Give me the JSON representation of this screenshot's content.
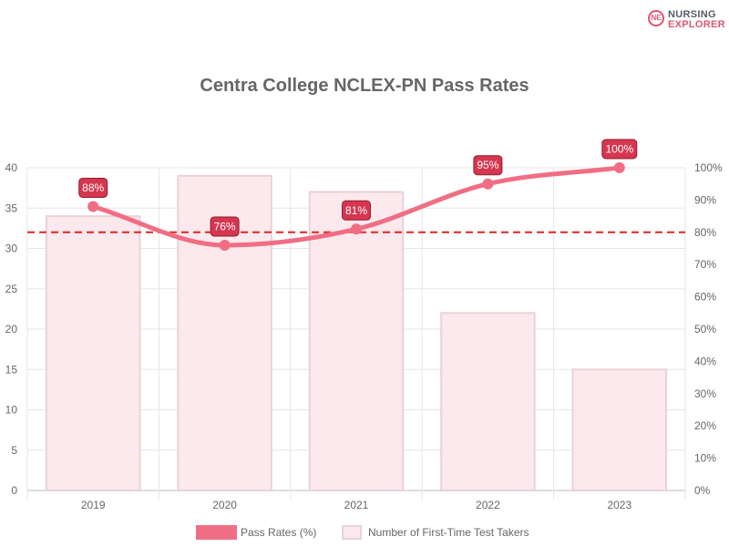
{
  "logo": {
    "line1": "NURSING",
    "line2": "EXPLORER",
    "badge": "NE"
  },
  "chart_data": {
    "type": "bar",
    "title": "Centra College NCLEX-PN Pass Rates",
    "categories": [
      "2019",
      "2020",
      "2021",
      "2022",
      "2023"
    ],
    "series": [
      {
        "name": "Pass Rates (%)",
        "type": "line",
        "axis": "right",
        "values": [
          88,
          76,
          81,
          95,
          100
        ],
        "data_labels": [
          "88%",
          "76%",
          "81%",
          "95%",
          "100%"
        ],
        "color": "#f06e84"
      },
      {
        "name": "Number of First-Time Test Takers",
        "type": "bar",
        "axis": "left",
        "values": [
          34,
          39,
          37,
          22,
          15
        ],
        "color": "#fbe9ed",
        "border_color": "#e8d3d8"
      }
    ],
    "left_axis": {
      "ylim": [
        0,
        40
      ],
      "ticks": [
        "0",
        "5",
        "10",
        "15",
        "20",
        "25",
        "30",
        "35",
        "40"
      ]
    },
    "right_axis": {
      "ylim": [
        0,
        100
      ],
      "ticks": [
        "0%",
        "10%",
        "20%",
        "30%",
        "40%",
        "50%",
        "60%",
        "70%",
        "80%",
        "90%",
        "100%"
      ]
    },
    "reference_line": {
      "value": 80,
      "axis": "right",
      "style": "dashed",
      "color": "#e02424"
    },
    "grid": true,
    "legend": "bottom"
  }
}
